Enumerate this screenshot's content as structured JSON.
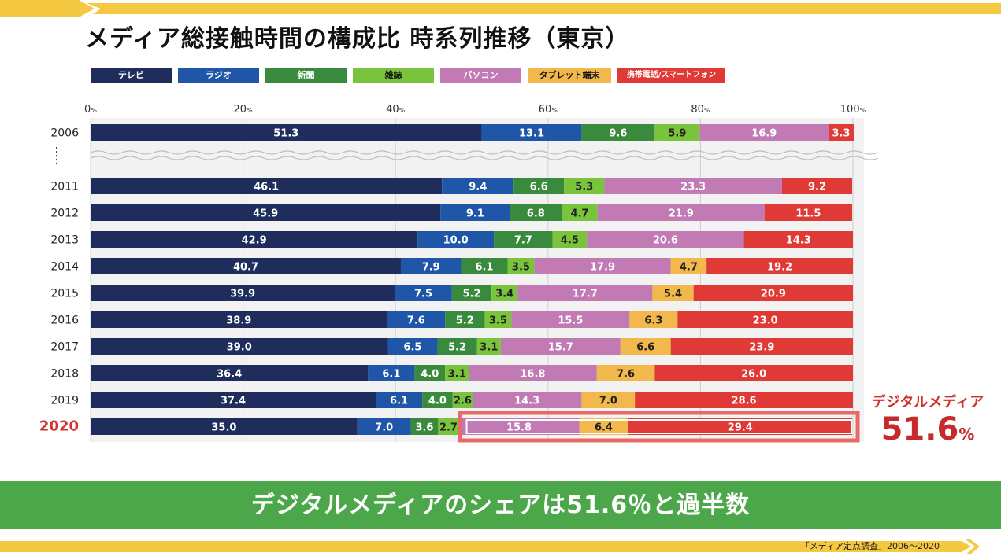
{
  "title": "メディア総接触時間の構成比 時系列推移（東京）",
  "colors": {
    "テレビ": "#1f2d5c",
    "ラジオ": "#1f56a8",
    "新聞": "#3a8a3e",
    "雑誌": "#7ac43d",
    "パソコン": "#c27ab5",
    "タブレット端末": "#f2b84b",
    "携帯電話/スマートフォン": "#e03a36",
    "accent_red": "#d0312d",
    "banner_green": "#4ca64a",
    "bar_yellow": "#f5c842"
  },
  "chart_data": {
    "type": "bar",
    "orientation": "horizontal",
    "stacked": true,
    "title": "メディア総接触時間の構成比 時系列推移（東京）",
    "xlabel": "",
    "ylabel": "",
    "xlim": [
      0,
      100
    ],
    "x_ticks": [
      "0",
      "20",
      "40",
      "60",
      "80",
      "100"
    ],
    "x_tick_unit": "%",
    "grid": true,
    "legend_position": "top",
    "categories": [
      "2006",
      "2011",
      "2012",
      "2013",
      "2014",
      "2015",
      "2016",
      "2017",
      "2018",
      "2019",
      "2020"
    ],
    "series": [
      {
        "name": "テレビ",
        "values": [
          51.3,
          46.1,
          45.9,
          42.9,
          40.7,
          39.9,
          38.9,
          39.0,
          36.4,
          37.4,
          35.0
        ]
      },
      {
        "name": "ラジオ",
        "values": [
          13.1,
          9.4,
          9.1,
          10.0,
          7.9,
          7.5,
          7.6,
          6.5,
          6.1,
          6.1,
          7.0
        ]
      },
      {
        "name": "新聞",
        "values": [
          9.6,
          6.6,
          6.8,
          7.7,
          6.1,
          5.2,
          5.2,
          5.2,
          4.0,
          4.0,
          3.6
        ]
      },
      {
        "name": "雑誌",
        "values": [
          5.9,
          5.3,
          4.7,
          4.5,
          3.5,
          3.4,
          3.5,
          3.1,
          3.1,
          2.6,
          2.7
        ]
      },
      {
        "name": "パソコン",
        "values": [
          16.9,
          23.3,
          21.9,
          20.6,
          17.9,
          17.7,
          15.5,
          15.7,
          16.8,
          14.3,
          15.8
        ]
      },
      {
        "name": "タブレット端末",
        "values": [
          null,
          null,
          null,
          null,
          4.7,
          5.4,
          6.3,
          6.6,
          7.6,
          7.0,
          6.4
        ]
      },
      {
        "name": "携帯電話/スマートフォン",
        "values": [
          3.3,
          9.2,
          11.5,
          14.3,
          19.2,
          20.9,
          23.0,
          23.9,
          26.0,
          28.6,
          29.4
        ]
      }
    ],
    "annotations": {
      "highlight_category": "2020",
      "digital_media_label": "デジタルメディア",
      "digital_media_value": "51.6",
      "digital_media_unit": "%"
    }
  },
  "banner_text": "デジタルメディアのシェアは51.6％と過半数",
  "source": "「メディア定点調査」2006〜2020"
}
